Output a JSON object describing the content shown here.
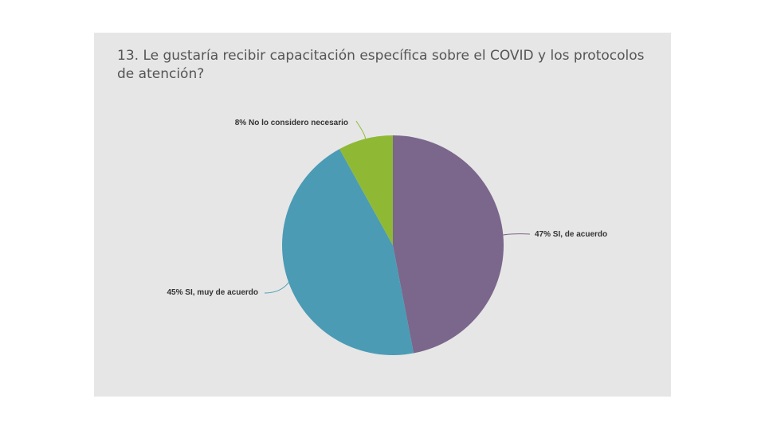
{
  "title": "13. Le gustaría recibir capacitación específica sobre el COVID y los protocolos de atención?",
  "chart_data": {
    "type": "pie",
    "title": "13. Le gustaría recibir capacitación específica sobre el COVID y los protocolos de atención?",
    "slices": [
      {
        "label": "SI, de acuerdo",
        "value": 47,
        "display": "47% SI, de acuerdo",
        "color": "#7b668c"
      },
      {
        "label": "SI, muy de acuerdo",
        "value": 45,
        "display": "45% SI, muy de acuerdo",
        "color": "#4b9bb5"
      },
      {
        "label": "No lo considero necesario",
        "value": 8,
        "display": "8% No lo considero necesario",
        "color": "#8fb935"
      }
    ],
    "start": "12 o'clock",
    "direction": "clockwise",
    "legend": "none (slice labels with leader lines)"
  }
}
